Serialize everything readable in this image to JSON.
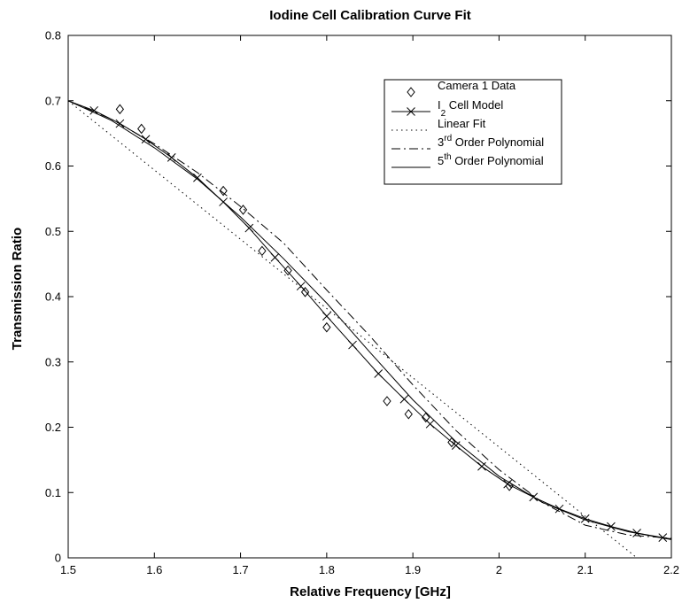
{
  "chart_data": {
    "type": "line",
    "title": "Iodine Cell Calibration Curve Fit",
    "xlabel": "Relative Frequency [GHz]",
    "ylabel": "Transmission Ratio",
    "xlim": [
      1.5,
      2.2
    ],
    "ylim": [
      0,
      0.8
    ],
    "xticks": [
      "1.5",
      "1.6",
      "1.7",
      "1.8",
      "1.9",
      "2",
      "2.1",
      "2.2"
    ],
    "yticks": [
      "0",
      "0.1",
      "0.2",
      "0.3",
      "0.4",
      "0.5",
      "0.6",
      "0.7",
      "0.8"
    ],
    "grid": false,
    "legend_position": "top-right",
    "legend": [
      {
        "marker": "diamond",
        "line": "none",
        "parts": [
          {
            "t": "Camera 1 Data"
          }
        ]
      },
      {
        "marker": "x",
        "line": "solid",
        "parts": [
          {
            "t": "I"
          },
          {
            "t": "2",
            "sub": true
          },
          {
            "t": " Cell Model"
          }
        ]
      },
      {
        "marker": "none",
        "line": "dotted",
        "parts": [
          {
            "t": "Linear Fit"
          }
        ]
      },
      {
        "marker": "none",
        "line": "dashdot",
        "parts": [
          {
            "t": "3"
          },
          {
            "t": "rd",
            "sup": true
          },
          {
            "t": " Order Polynomial"
          }
        ]
      },
      {
        "marker": "none",
        "line": "solid",
        "parts": [
          {
            "t": "5"
          },
          {
            "t": "th",
            "sup": true
          },
          {
            "t": " Order Polynomial"
          }
        ]
      }
    ],
    "series": [
      {
        "name": "Camera 1 Data",
        "style": "markers-diamond",
        "x": [
          1.56,
          1.585,
          1.68,
          1.703,
          1.725,
          1.755,
          1.775,
          1.8,
          1.87,
          1.895,
          1.915,
          1.945,
          2.012
        ],
        "y": [
          0.687,
          0.657,
          0.562,
          0.533,
          0.47,
          0.44,
          0.407,
          0.353,
          0.24,
          0.22,
          0.215,
          0.177,
          0.11
        ]
      },
      {
        "name": "I2 Cell Model",
        "style": "solid-x",
        "x": [
          1.5,
          1.53,
          1.56,
          1.59,
          1.62,
          1.65,
          1.68,
          1.71,
          1.74,
          1.77,
          1.8,
          1.83,
          1.86,
          1.89,
          1.92,
          1.95,
          1.98,
          2.01,
          2.04,
          2.07,
          2.1,
          2.13,
          2.16,
          2.19,
          2.2
        ],
        "y": [
          0.7,
          0.685,
          0.665,
          0.641,
          0.613,
          0.582,
          0.545,
          0.505,
          0.46,
          0.416,
          0.37,
          0.326,
          0.282,
          0.243,
          0.205,
          0.172,
          0.14,
          0.113,
          0.093,
          0.075,
          0.06,
          0.048,
          0.038,
          0.031,
          0.029
        ]
      },
      {
        "name": "Linear Fit",
        "style": "dotted",
        "x": [
          1.5,
          2.16
        ],
        "y": [
          0.7,
          0.0
        ]
      },
      {
        "name": "3rd Order Polynomial",
        "style": "dashdot",
        "x": [
          1.5,
          1.55,
          1.6,
          1.65,
          1.7,
          1.75,
          1.8,
          1.85,
          1.9,
          1.95,
          2.0,
          2.05,
          2.1,
          2.15,
          2.2
        ],
        "y": [
          0.7,
          0.672,
          0.634,
          0.59,
          0.538,
          0.482,
          0.41,
          0.34,
          0.265,
          0.195,
          0.135,
          0.085,
          0.05,
          0.035,
          0.03
        ]
      },
      {
        "name": "5th Order Polynomial",
        "style": "solid",
        "x": [
          1.5,
          1.55,
          1.6,
          1.65,
          1.7,
          1.75,
          1.8,
          1.85,
          1.9,
          1.95,
          2.0,
          2.05,
          2.1,
          2.15,
          2.2
        ],
        "y": [
          0.7,
          0.67,
          0.628,
          0.58,
          0.522,
          0.458,
          0.39,
          0.315,
          0.242,
          0.178,
          0.125,
          0.085,
          0.058,
          0.04,
          0.028
        ]
      }
    ]
  }
}
